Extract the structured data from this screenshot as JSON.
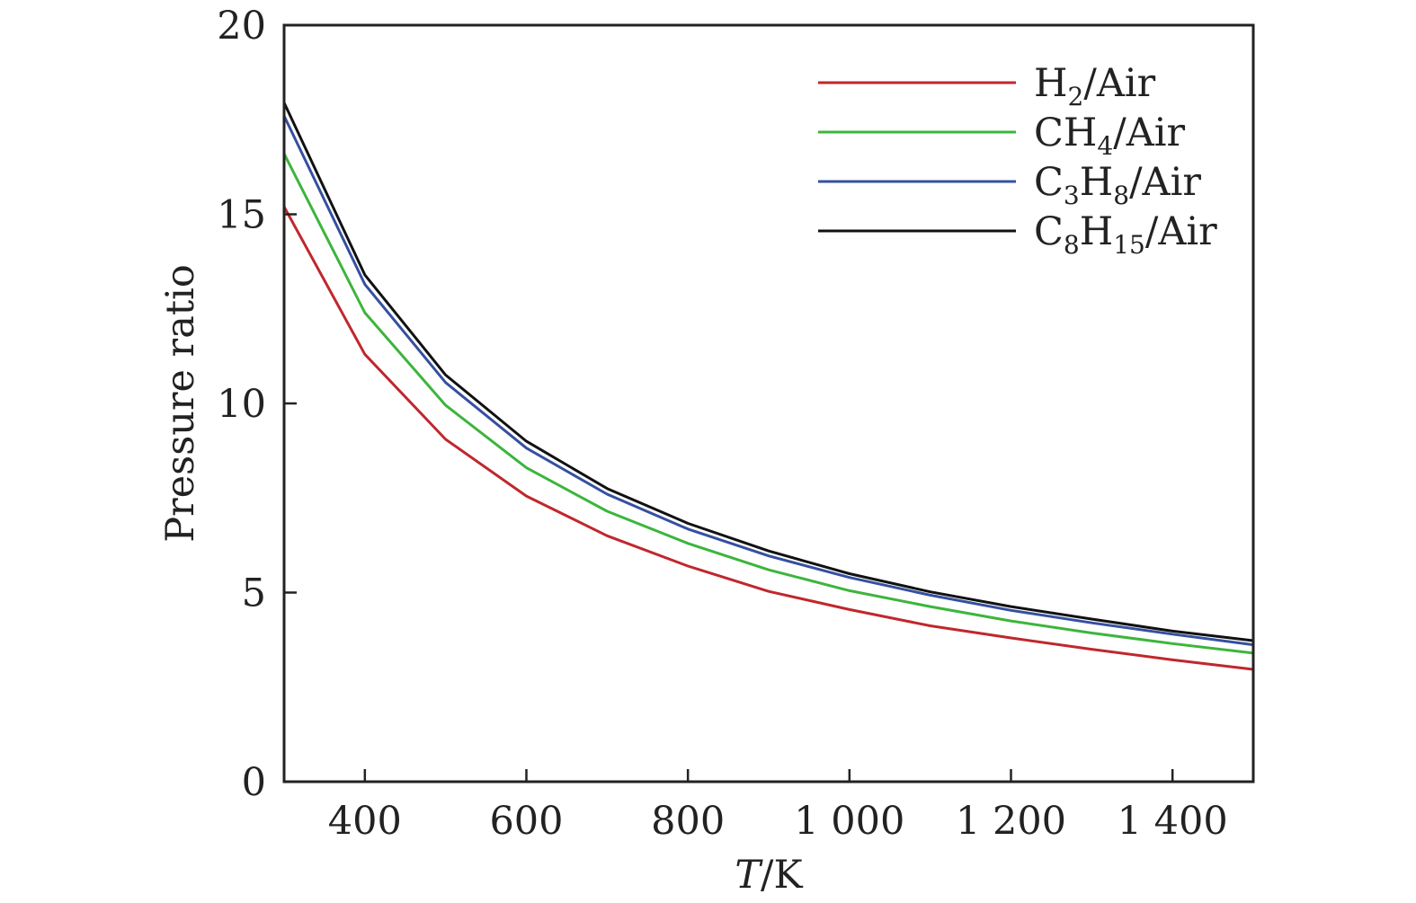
{
  "chart_data": {
    "type": "line",
    "xlabel": "T/K",
    "xlabel_italic": "T",
    "xlabel_rest": "/K",
    "ylabel": "Pressure ratio",
    "xlim": [
      300,
      1500
    ],
    "ylim": [
      0,
      20
    ],
    "xticks": [
      400,
      600,
      800,
      1000,
      1200,
      1400
    ],
    "xtick_labels": [
      "400",
      "600",
      "800",
      "1 000",
      "1 200",
      "1 400"
    ],
    "yticks": [
      0,
      5,
      10,
      15,
      20
    ],
    "ytick_labels": [
      "0",
      "5",
      "10",
      "15",
      "20"
    ],
    "grid": false,
    "legend_position": "top-right",
    "x": [
      300,
      400,
      500,
      600,
      700,
      800,
      900,
      1000,
      1100,
      1200,
      1300,
      1400,
      1500
    ],
    "series": [
      {
        "name": "H2/Air",
        "legend_parts": [
          [
            "H",
            ""
          ],
          [
            "2",
            "sub"
          ],
          [
            "/Air",
            ""
          ]
        ],
        "color": "#c0272d",
        "values": [
          15.2,
          11.3,
          9.05,
          7.55,
          6.5,
          5.7,
          5.03,
          4.55,
          4.12,
          3.8,
          3.5,
          3.22,
          2.97
        ]
      },
      {
        "name": "CH4/Air",
        "legend_parts": [
          [
            "CH",
            ""
          ],
          [
            "4",
            "sub"
          ],
          [
            "/Air",
            ""
          ]
        ],
        "color": "#3cb53c",
        "values": [
          16.6,
          12.4,
          9.95,
          8.3,
          7.15,
          6.3,
          5.6,
          5.05,
          4.63,
          4.25,
          3.93,
          3.65,
          3.4
        ]
      },
      {
        "name": "C3H8/Air",
        "legend_parts": [
          [
            "C",
            ""
          ],
          [
            "3",
            "sub"
          ],
          [
            "H",
            ""
          ],
          [
            "8",
            "sub"
          ],
          [
            "/Air",
            ""
          ]
        ],
        "color": "#3550a0",
        "values": [
          17.6,
          13.15,
          10.55,
          8.82,
          7.6,
          6.68,
          5.97,
          5.4,
          4.93,
          4.53,
          4.2,
          3.9,
          3.62
        ]
      },
      {
        "name": "C8H15/Air",
        "legend_parts": [
          [
            "C",
            ""
          ],
          [
            "8",
            "sub"
          ],
          [
            "H",
            ""
          ],
          [
            "15",
            "sub"
          ],
          [
            "/Air",
            ""
          ]
        ],
        "color": "#111111",
        "values": [
          17.95,
          13.4,
          10.75,
          9.0,
          7.75,
          6.83,
          6.1,
          5.5,
          5.02,
          4.63,
          4.3,
          3.98,
          3.73
        ]
      }
    ]
  }
}
